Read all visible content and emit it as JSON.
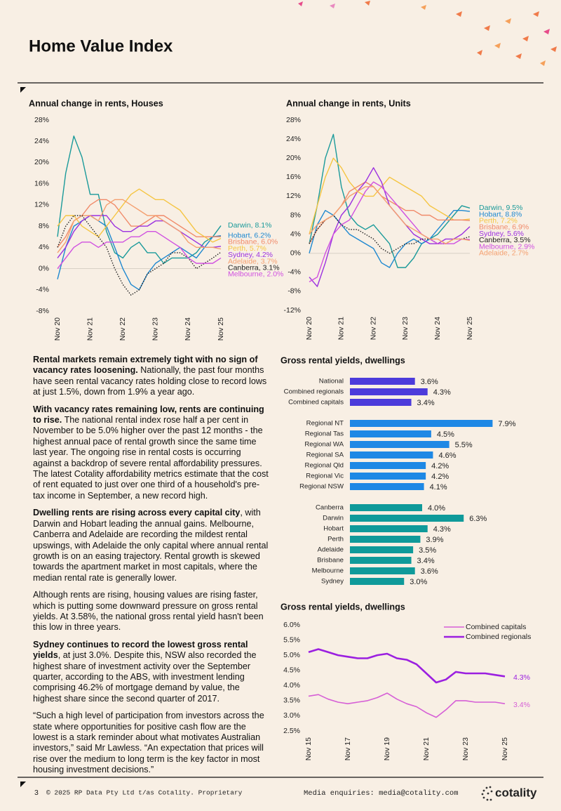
{
  "header": {
    "title": "Home Value Index"
  },
  "chart_data": [
    {
      "type": "line",
      "title": "Annual change in rents, Houses",
      "categories": [
        "Nov 20",
        null,
        null,
        null,
        "Nov 21",
        null,
        null,
        null,
        "Nov 22",
        null,
        null,
        null,
        "Nov 23",
        null,
        null,
        null,
        "Nov 24",
        null,
        null,
        null,
        "Nov 25"
      ],
      "ylim": [
        -8,
        28
      ],
      "yticks": [
        {
          "value": -8,
          "label": "-8%"
        },
        {
          "value": -4,
          "label": "-4%"
        },
        {
          "value": 0,
          "label": "0%"
        },
        {
          "value": 4,
          "label": "4%"
        },
        {
          "value": 8,
          "label": "8%"
        },
        {
          "value": 12,
          "label": "12%"
        },
        {
          "value": 16,
          "label": "16%"
        },
        {
          "value": 20,
          "label": "20%"
        },
        {
          "value": 24,
          "label": "24%"
        },
        {
          "value": 28,
          "label": "28%"
        }
      ],
      "zero_line": true,
      "series": [
        {
          "name": "Darwin, 8.1%",
          "color": "#1a9a9a",
          "values": [
            6,
            18,
            25,
            21,
            14,
            14,
            7,
            3,
            2,
            4,
            5,
            3,
            3,
            1,
            2,
            2,
            2,
            3,
            5,
            6,
            8.1
          ]
        },
        {
          "name": "Hobart, 6.2%",
          "color": "#1e88d0",
          "values": [
            -2,
            4,
            8,
            9,
            10,
            9,
            8,
            4,
            0,
            -3,
            -4,
            -1,
            1,
            2,
            3,
            4,
            3,
            2,
            4,
            6,
            6.2
          ]
        },
        {
          "name": "Brisbane, 6.0%",
          "color": "#f08a6a",
          "values": [
            4,
            6,
            9,
            10,
            12,
            13,
            13,
            12,
            10,
            8,
            8,
            9,
            10,
            10,
            9,
            8,
            7,
            6,
            6,
            6,
            6.0
          ]
        },
        {
          "name": "Perth, 5.7%",
          "color": "#f5c542",
          "values": [
            8,
            10,
            10,
            8,
            7,
            6,
            8,
            10,
            12,
            14,
            15,
            14,
            13,
            13,
            12,
            11,
            9,
            7,
            6,
            5,
            5.7
          ]
        },
        {
          "name": "Sydney, 4.2%",
          "color": "#9b30e0",
          "values": [
            2,
            4,
            7,
            9,
            10,
            10,
            10,
            8,
            7,
            7,
            8,
            8,
            9,
            9,
            8,
            7,
            6,
            5,
            4,
            4,
            4.2
          ]
        },
        {
          "name": "Adelaide, 3.7%",
          "color": "#f4a070",
          "values": [
            3,
            5,
            9,
            10,
            10,
            9,
            12,
            13,
            13,
            12,
            11,
            10,
            10,
            9,
            8,
            7,
            5,
            4,
            4,
            4,
            3.7
          ]
        },
        {
          "name": "Canberra, 3.1%",
          "color": "#222222",
          "dashed": true,
          "values": [
            4,
            8,
            10,
            10,
            8,
            6,
            4,
            0,
            -3,
            -5,
            -4,
            -1,
            0,
            1,
            3,
            3,
            2,
            0,
            1,
            2,
            3.1
          ]
        },
        {
          "name": "Melbourne, 2.0%",
          "color": "#d050e0",
          "values": [
            0,
            2,
            4,
            5,
            5,
            4,
            5,
            5,
            5,
            6,
            6,
            7,
            7,
            6,
            5,
            4,
            2,
            1,
            1,
            1,
            2.0
          ]
        }
      ]
    },
    {
      "type": "line",
      "title": "Annual change in rents, Units",
      "categories": [
        "Nov 20",
        null,
        null,
        null,
        "Nov 21",
        null,
        null,
        null,
        "Nov 22",
        null,
        null,
        null,
        "Nov 23",
        null,
        null,
        null,
        "Nov 24",
        null,
        null,
        null,
        "Nov 25"
      ],
      "ylim": [
        -12,
        28
      ],
      "yticks": [
        {
          "value": -12,
          "label": "-12%"
        },
        {
          "value": -8,
          "label": "-8%"
        },
        {
          "value": -4,
          "label": "-4%"
        },
        {
          "value": 0,
          "label": "0%"
        },
        {
          "value": 4,
          "label": "4%"
        },
        {
          "value": 8,
          "label": "8%"
        },
        {
          "value": 12,
          "label": "12%"
        },
        {
          "value": 16,
          "label": "16%"
        },
        {
          "value": 20,
          "label": "20%"
        },
        {
          "value": 24,
          "label": "24%"
        },
        {
          "value": 28,
          "label": "28%"
        }
      ],
      "zero_line": true,
      "series": [
        {
          "name": "Darwin, 9.5%",
          "color": "#1a9a9a",
          "values": [
            2,
            10,
            20,
            25,
            14,
            8,
            6,
            5,
            6,
            4,
            2,
            -3,
            -3,
            -1,
            2,
            3,
            4,
            6,
            8,
            10,
            9.5
          ]
        },
        {
          "name": "Hobart, 8.8%",
          "color": "#1e88d0",
          "values": [
            0,
            6,
            9,
            8,
            6,
            4,
            3,
            2,
            1,
            -2,
            -3,
            0,
            2,
            3,
            2,
            3,
            5,
            7,
            9,
            9,
            8.8
          ]
        },
        {
          "name": "Perth, 7.2%",
          "color": "#f5c542",
          "values": [
            4,
            10,
            16,
            20,
            18,
            15,
            13,
            12,
            12,
            14,
            16,
            15,
            14,
            13,
            12,
            10,
            9,
            8,
            7,
            7,
            7.2
          ]
        },
        {
          "name": "Brisbane, 6.9%",
          "color": "#f08a6a",
          "values": [
            2,
            5,
            7,
            8,
            10,
            13,
            14,
            15,
            14,
            12,
            11,
            10,
            9,
            9,
            8,
            8,
            7,
            7,
            7,
            7,
            6.9
          ]
        },
        {
          "name": "Sydney, 5.6%",
          "color": "#9b30e0",
          "values": [
            -5,
            -7,
            -2,
            4,
            8,
            10,
            13,
            15,
            18,
            15,
            10,
            8,
            6,
            4,
            3,
            2,
            2,
            3,
            3,
            4,
            5.6
          ]
        },
        {
          "name": "Canberra, 3.5%",
          "color": "#222222",
          "dashed": true,
          "values": [
            2,
            5,
            7,
            8,
            6,
            5,
            5,
            4,
            3,
            1,
            0,
            1,
            2,
            2,
            3,
            3,
            2,
            2,
            3,
            3,
            3.5
          ]
        },
        {
          "name": "Melbourne, 2.9%",
          "color": "#d050e0",
          "values": [
            -6,
            -5,
            0,
            4,
            6,
            7,
            10,
            13,
            15,
            14,
            12,
            10,
            8,
            6,
            4,
            3,
            2,
            2,
            2,
            3,
            2.9
          ]
        },
        {
          "name": "Adelaide, 2.7%",
          "color": "#f4a070",
          "values": [
            4,
            6,
            7,
            8,
            10,
            12,
            13,
            14,
            14,
            12,
            10,
            8,
            6,
            5,
            4,
            3,
            3,
            2,
            3,
            3,
            2.7
          ]
        }
      ]
    },
    {
      "type": "hbar",
      "title": "Gross rental yields, dwellings",
      "xlim": [
        0,
        8
      ],
      "groups": [
        {
          "color": "#4c3bdb",
          "categories": [
            "National",
            "Combined regionals",
            "Combined capitals"
          ],
          "values": [
            3.6,
            4.3,
            3.4
          ],
          "value_labels": [
            "3.6%",
            "4.3%",
            "3.4%"
          ]
        },
        {
          "color": "#1e88e5",
          "categories": [
            "Regional NT",
            "Regional Tas",
            "Regional WA",
            "Regional SA",
            "Regional Qld",
            "Regional Vic",
            "Regional NSW"
          ],
          "values": [
            7.9,
            4.5,
            5.5,
            4.6,
            4.2,
            4.2,
            4.1
          ],
          "value_labels": [
            "7.9%",
            "4.5%",
            "5.5%",
            "4.6%",
            "4.2%",
            "4.2%",
            "4.1%"
          ]
        },
        {
          "color": "#0f9a9a",
          "categories": [
            "Canberra",
            "Darwin",
            "Hobart",
            "Perth",
            "Adelaide",
            "Brisbane",
            "Melbourne",
            "Sydney"
          ],
          "values": [
            4.0,
            6.3,
            4.3,
            3.9,
            3.5,
            3.4,
            3.6,
            3.0
          ],
          "value_labels": [
            "4.0%",
            "6.3%",
            "4.3%",
            "3.9%",
            "3.5%",
            "3.4%",
            "3.6%",
            "3.0%"
          ]
        }
      ]
    },
    {
      "type": "line",
      "title": "Gross rental yields, dwellings",
      "categories": [
        "Nov 15",
        null,
        null,
        null,
        "Nov 17",
        null,
        null,
        null,
        "Nov 19",
        null,
        null,
        null,
        "Nov 21",
        null,
        null,
        null,
        "Nov 23",
        null,
        null,
        null,
        "Nov 25"
      ],
      "ylim": [
        2.5,
        6.0
      ],
      "yticks": [
        {
          "value": 2.5,
          "label": "2.5%"
        },
        {
          "value": 3,
          "label": "3.0%"
        },
        {
          "value": 3.5,
          "label": "3.5%"
        },
        {
          "value": 4,
          "label": "4.0%"
        },
        {
          "value": 4.5,
          "label": "4.5%"
        },
        {
          "value": 5,
          "label": "5.0%"
        },
        {
          "value": 5.5,
          "label": "5.5%"
        },
        {
          "value": 6,
          "label": "6.0%"
        }
      ],
      "legend": "top-right",
      "series": [
        {
          "name": "Combined capitals",
          "color": "#d65fd6",
          "width": 1.6,
          "end_label": "3.4%",
          "values": [
            3.65,
            3.7,
            3.55,
            3.45,
            3.4,
            3.45,
            3.5,
            3.6,
            3.75,
            3.55,
            3.4,
            3.3,
            3.1,
            2.95,
            3.2,
            3.5,
            3.5,
            3.45,
            3.45,
            3.45,
            3.4
          ]
        },
        {
          "name": "Combined regionals",
          "color": "#9b1fe0",
          "width": 2.6,
          "end_label": "4.3%",
          "values": [
            5.1,
            5.2,
            5.1,
            5.0,
            4.95,
            4.9,
            4.9,
            5.0,
            5.05,
            4.9,
            4.85,
            4.7,
            4.4,
            4.1,
            4.2,
            4.45,
            4.4,
            4.4,
            4.4,
            4.35,
            4.3
          ]
        }
      ]
    }
  ],
  "body": {
    "paragraphs": [
      {
        "bold": "Rental markets remain extremely tight with no sign of vacancy rates loosening.",
        "text": "Nationally, the past four months have seen rental vacancy rates holding close to record lows at just 1.5%, down from 1.9% a year ago."
      },
      {
        "bold": "With vacancy rates remaining low, rents are continuing to rise.",
        "text": "The national rental index rose half a per cent in November to be 5.0% higher over the past 12 months - the highest annual pace of rental growth since the same time last year. The ongoing rise in rental costs is occurring against a backdrop of severe rental affordability pressures. The latest Cotality affordability metrics estimate that the cost of rent equated to just over one third of a household's pre-tax income in September, a new record high."
      },
      {
        "bold": "Dwelling rents are rising across every capital city",
        "text": ", with Darwin and Hobart leading the annual gains. Melbourne, Canberra and Adelaide are recording the mildest rental upswings, with Adelaide the only capital where annual rental growth is on an easing trajectory. Rental growth is skewed towards the apartment market in most capitals, where the median rental rate is generally lower."
      },
      {
        "text": "Although rents are rising, housing values are rising faster, which is putting some downward pressure on gross rental yields. At 3.58%, the national gross rental yield hasn't been this low in three years."
      },
      {
        "bold": "Sydney continues to record the lowest gross rental yields",
        "text": ", at just 3.0%. Despite this, NSW also recorded the highest share of investment activity over the September quarter, according to the ABS, with investment lending comprising 46.2% of mortgage demand by value, the highest share since the second quarter of 2017."
      },
      {
        "text": "“Such a high level of participation from investors across the state where opportunities for positive cash flow are the lowest is a stark reminder about what motivates Australian investors,” said Mr Lawless. “An expectation that prices will rise over the medium to long term is the key factor in most housing investment decisions.”"
      }
    ]
  },
  "footer": {
    "page": "3",
    "copyright": "© 2025 RP Data Pty Ltd t/as Cotality. Proprietary",
    "media": "Media enquiries: media@cotality.com",
    "logo": "cotality"
  }
}
